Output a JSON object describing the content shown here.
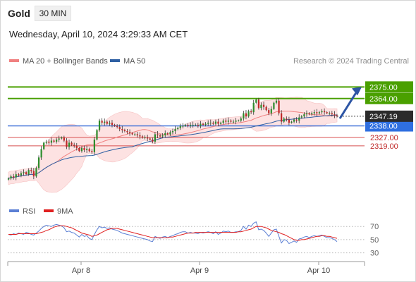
{
  "header": {
    "instrument": "Gold",
    "timeframe": "30 MIN",
    "datetime": "Wednesday, April 10, 2024 3:29:33 AM CET"
  },
  "legend": {
    "main": [
      {
        "label": "MA 20 + Bollinger Bands",
        "color": "#f08080"
      },
      {
        "label": "MA 50",
        "color": "#2e5fa3"
      }
    ],
    "rsi": [
      {
        "label": "RSI",
        "color": "#5b7fd4"
      },
      {
        "label": "9MA",
        "color": "#e02020"
      }
    ]
  },
  "credit": "Research © 2024 Trading Central",
  "colors": {
    "up": "#2c8c2c",
    "down": "#c02828",
    "resistance": "#4aa000",
    "support_line": "#d85050",
    "pivot": "#3d6fd8",
    "arrow": "#2d55a5",
    "band_fill": "#fde2e2"
  },
  "chart_data": [
    {
      "type": "candlestick",
      "title": "Gold 30 MIN",
      "x_ticks": [
        "Apr 8",
        "Apr 9",
        "Apr 10"
      ],
      "price_range": [
        2270,
        2392
      ],
      "last_price": 2347.19,
      "levels": [
        {
          "label": "2375.00",
          "value": 2375.0,
          "kind": "resistance"
        },
        {
          "label": "2364.00",
          "value": 2364.0,
          "kind": "resistance"
        },
        {
          "label": "2338.00",
          "value": 2338.0,
          "kind": "pivot"
        },
        {
          "label": "2327.00",
          "value": 2327.0,
          "kind": "support"
        },
        {
          "label": "2319.00",
          "value": 2319.0,
          "kind": "support"
        }
      ],
      "last_price_label": "2347.19",
      "projection": {
        "from": 2345,
        "to": 2375,
        "direction": "up"
      },
      "close_series": [
        2288,
        2290,
        2289,
        2292,
        2291,
        2293,
        2294,
        2292,
        2296,
        2295,
        2290,
        2298,
        2308,
        2316,
        2322,
        2323,
        2322,
        2324,
        2323,
        2325,
        2326,
        2327,
        2324,
        2318,
        2322,
        2320,
        2319,
        2317,
        2314,
        2317,
        2315,
        2316,
        2314,
        2313,
        2325,
        2334,
        2343,
        2341,
        2342,
        2340,
        2341,
        2339,
        2338,
        2337,
        2335,
        2334,
        2333,
        2332,
        2331,
        2330,
        2330,
        2329,
        2328,
        2327,
        2327,
        2326,
        2325,
        2323,
        2330,
        2329,
        2328,
        2329,
        2331,
        2330,
        2332,
        2333,
        2335,
        2336,
        2338,
        2338,
        2339,
        2338,
        2339,
        2339,
        2339,
        2338,
        2340,
        2339,
        2340,
        2341,
        2341,
        2340,
        2342,
        2340,
        2341,
        2343,
        2342,
        2343,
        2342,
        2342,
        2343,
        2343,
        2345,
        2350,
        2347,
        2352,
        2351,
        2360,
        2363,
        2355,
        2358,
        2356,
        2353,
        2350,
        2354,
        2360,
        2362,
        2350,
        2342,
        2345,
        2344,
        2341,
        2342,
        2344,
        2343,
        2346,
        2347,
        2349,
        2350,
        2349,
        2350,
        2351,
        2350,
        2351,
        2352,
        2351,
        2350,
        2350,
        2349,
        2348,
        2347.19
      ]
    },
    {
      "type": "line",
      "title": "RSI",
      "y_ticks": [
        70,
        50,
        30
      ],
      "ylim": [
        20,
        82
      ],
      "series": [
        {
          "name": "RSI",
          "values": [
            58,
            57,
            59,
            58,
            60,
            59,
            58,
            61,
            60,
            58,
            57,
            60,
            63,
            67,
            70,
            72,
            71,
            70,
            72,
            73,
            72,
            71,
            68,
            62,
            63,
            61,
            60,
            57,
            54,
            58,
            55,
            56,
            52,
            50,
            58,
            65,
            70,
            68,
            69,
            67,
            68,
            66,
            65,
            64,
            62,
            60,
            59,
            58,
            57,
            56,
            55,
            54,
            53,
            52,
            51,
            50,
            48,
            47,
            55,
            53,
            52,
            54,
            55,
            53,
            55,
            56,
            58,
            59,
            61,
            62,
            62,
            60,
            61,
            60,
            60,
            59,
            61,
            60,
            61,
            62,
            61,
            59,
            62,
            58,
            60,
            63,
            62,
            63,
            61,
            61,
            62,
            62,
            64,
            70,
            66,
            72,
            70,
            75,
            77,
            65,
            66,
            64,
            60,
            55,
            60,
            65,
            66,
            55,
            45,
            50,
            49,
            44,
            46,
            48,
            46,
            51,
            52,
            54,
            55,
            53,
            55,
            56,
            55,
            56,
            57,
            55,
            53,
            53,
            52,
            50,
            47
          ]
        },
        {
          "name": "9MA",
          "values": [
            58,
            58,
            58,
            58,
            59,
            59,
            59,
            59,
            59,
            59,
            59,
            59,
            60,
            61,
            62,
            64,
            65,
            67,
            69,
            70,
            71,
            71,
            71,
            70,
            69,
            68,
            66,
            64,
            62,
            60,
            59,
            58,
            57,
            55,
            56,
            57,
            59,
            61,
            63,
            65,
            66,
            67,
            67,
            67,
            66,
            65,
            64,
            63,
            62,
            61,
            60,
            59,
            58,
            57,
            56,
            55,
            54,
            53,
            53,
            53,
            53,
            53,
            53,
            53,
            54,
            54,
            55,
            56,
            57,
            58,
            59,
            60,
            60,
            60,
            61,
            61,
            61,
            61,
            61,
            61,
            61,
            61,
            61,
            61,
            61,
            61,
            61,
            61,
            61,
            61,
            61,
            62,
            62,
            63,
            64,
            65,
            66,
            68,
            70,
            70,
            70,
            69,
            68,
            66,
            64,
            63,
            62,
            61,
            59,
            58,
            56,
            54,
            52,
            50,
            49,
            49,
            50,
            50,
            51,
            52,
            53,
            54,
            55,
            55,
            56,
            56,
            55,
            55,
            54,
            53,
            52
          ]
        }
      ]
    }
  ]
}
